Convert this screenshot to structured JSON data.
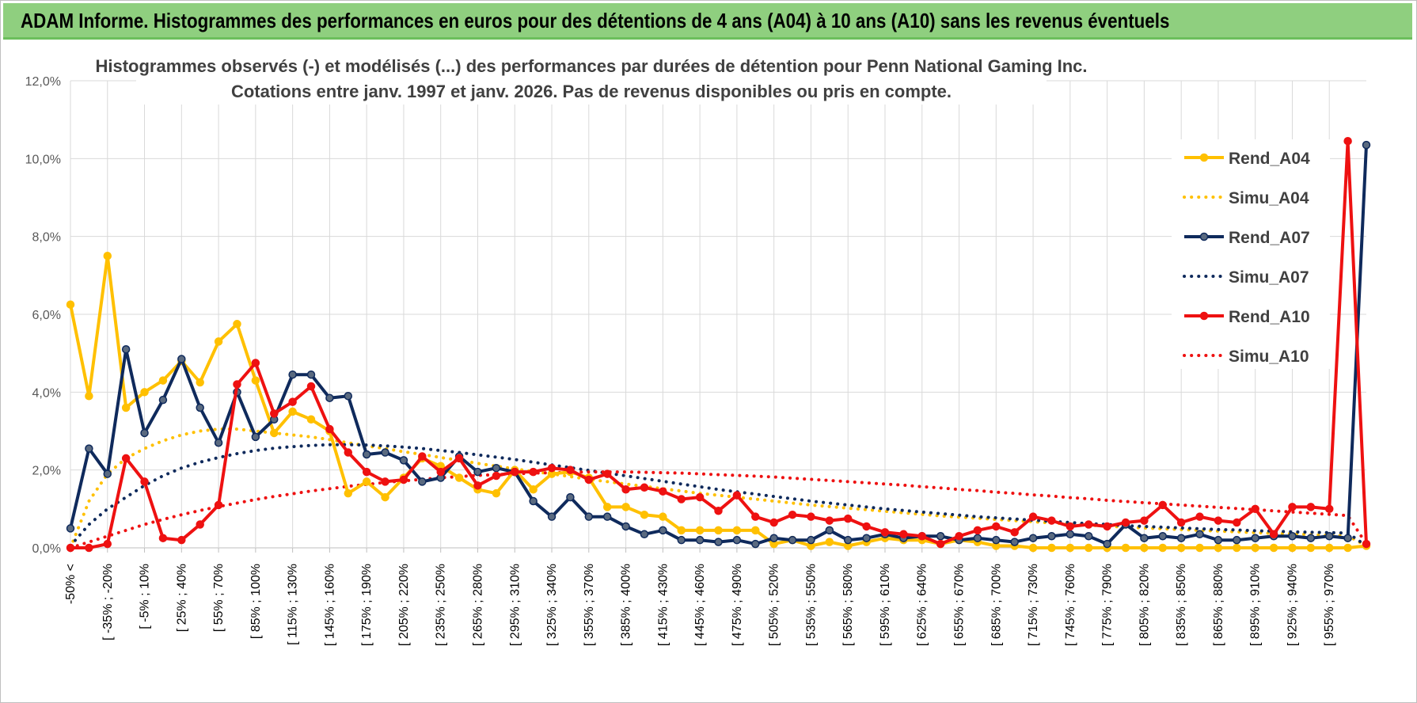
{
  "banner": {
    "title": "ADAM Informe. Histogrammes des performances en euros pour des détentions de 4 ans (A04) à 10 ans (A10) sans les revenus éventuels"
  },
  "chart_data": {
    "type": "line",
    "title": "Histogrammes observés (-) et modélisés (...) des performances par durées de détention pour Penn National Gaming Inc.",
    "subtitle": "Cotations entre janv. 1997 et janv. 2026. Pas de revenus disponibles ou pris en compte.",
    "xlabel": "",
    "ylabel": "",
    "ylim": [
      0,
      12
    ],
    "y_ticks": [
      "0,0%",
      "2,0%",
      "4,0%",
      "6,0%",
      "8,0%",
      "10,0%",
      "12,0%"
    ],
    "grid": true,
    "legend_position": "top-right",
    "x_tick_labels": [
      "-50% <",
      "[ -35% ; -20%",
      "[ -5% ; 10%",
      "[ 25% ; 40%",
      "[ 55% ; 70%",
      "[ 85% ; 100%",
      "[ 115% ; 130%",
      "[ 145% ; 160%",
      "[ 175% ; 190%",
      "[ 205% ; 220%",
      "[ 235% ; 250%",
      "[ 265% ; 280%",
      "[ 295% ; 310%",
      "[ 325% ; 340%",
      "[ 355% ; 370%",
      "[ 385% ; 400%",
      "[ 415% ; 430%",
      "[ 445% ; 460%",
      "[ 475% ; 490%",
      "[ 505% ; 520%",
      "[ 535% ; 550%",
      "[ 565% ; 580%",
      "[ 595% ; 610%",
      "[ 625% ; 640%",
      "[ 655% ; 670%",
      "[ 685% ; 700%",
      "[ 715% ; 730%",
      "[ 745% ; 760%",
      "[ 775% ; 790%",
      "[ 805% ; 820%",
      "[ 835% ; 850%",
      "[ 865% ; 880%",
      "[ 895% ; 910%",
      "[ 925% ; 940%",
      "[ 955% ; 970%"
    ],
    "series": [
      {
        "name": "Rend_A04",
        "style": "solid",
        "color": "#ffc000",
        "values": [
          6.25,
          3.9,
          7.5,
          3.6,
          4.0,
          4.3,
          4.8,
          4.25,
          5.3,
          5.75,
          4.3,
          2.95,
          3.5,
          3.3,
          3.0,
          1.4,
          1.7,
          1.3,
          1.8,
          2.3,
          2.1,
          1.8,
          1.5,
          1.4,
          2.0,
          1.5,
          1.9,
          1.95,
          1.8,
          1.05,
          1.05,
          0.85,
          0.8,
          0.45,
          0.45,
          0.45,
          0.45,
          0.45,
          0.1,
          0.2,
          0.05,
          0.15,
          0.05,
          0.15,
          0.25,
          0.2,
          0.2,
          0.1,
          0.2,
          0.15,
          0.05,
          0.05,
          0.0,
          0.0,
          0.0,
          0.0,
          0.0,
          0.0,
          0.0,
          0.0,
          0.0,
          0.0,
          0.0,
          0.0,
          0.0,
          0.0,
          0.0,
          0.0,
          0.0,
          0.0,
          0.05
        ]
      },
      {
        "name": "Simu_A04",
        "style": "dotted",
        "color": "#ffc000",
        "values": [
          0.0,
          1.2,
          1.9,
          2.3,
          2.55,
          2.75,
          2.9,
          3.0,
          3.05,
          3.05,
          3.0,
          2.95,
          2.9,
          2.85,
          2.78,
          2.7,
          2.62,
          2.55,
          2.47,
          2.4,
          2.32,
          2.25,
          2.17,
          2.1,
          2.03,
          1.96,
          1.9,
          1.83,
          1.76,
          1.7,
          1.64,
          1.58,
          1.52,
          1.46,
          1.4,
          1.35,
          1.3,
          1.25,
          1.2,
          1.15,
          1.1,
          1.06,
          1.02,
          0.98,
          0.94,
          0.9,
          0.86,
          0.82,
          0.79,
          0.76,
          0.73,
          0.7,
          0.67,
          0.64,
          0.61,
          0.58,
          0.56,
          0.53,
          0.51,
          0.49,
          0.47,
          0.45,
          0.43,
          0.41,
          0.39,
          0.37,
          0.36,
          0.34,
          0.32,
          0.31,
          0.05
        ]
      },
      {
        "name": "Rend_A07",
        "style": "solid",
        "color": "#0f2a5c",
        "values": [
          0.5,
          2.55,
          1.9,
          5.1,
          2.95,
          3.8,
          4.85,
          3.6,
          2.7,
          4.0,
          2.85,
          3.3,
          4.45,
          4.45,
          3.85,
          3.9,
          2.4,
          2.45,
          2.25,
          1.7,
          1.8,
          2.35,
          1.95,
          2.05,
          1.95,
          1.2,
          0.8,
          1.3,
          0.8,
          0.8,
          0.55,
          0.35,
          0.45,
          0.2,
          0.2,
          0.15,
          0.2,
          0.1,
          0.25,
          0.2,
          0.2,
          0.45,
          0.2,
          0.25,
          0.35,
          0.25,
          0.3,
          0.3,
          0.2,
          0.25,
          0.2,
          0.15,
          0.25,
          0.3,
          0.35,
          0.3,
          0.1,
          0.6,
          0.25,
          0.3,
          0.25,
          0.35,
          0.2,
          0.2,
          0.25,
          0.3,
          0.3,
          0.25,
          0.3,
          0.25,
          10.35
        ]
      },
      {
        "name": "Simu_A07",
        "style": "dotted",
        "color": "#0f2a5c",
        "values": [
          0.05,
          0.6,
          1.0,
          1.3,
          1.6,
          1.85,
          2.05,
          2.2,
          2.32,
          2.42,
          2.5,
          2.56,
          2.6,
          2.63,
          2.65,
          2.65,
          2.64,
          2.62,
          2.59,
          2.55,
          2.5,
          2.45,
          2.39,
          2.33,
          2.27,
          2.2,
          2.13,
          2.06,
          1.99,
          1.92,
          1.85,
          1.78,
          1.71,
          1.64,
          1.57,
          1.5,
          1.44,
          1.38,
          1.32,
          1.26,
          1.2,
          1.15,
          1.1,
          1.05,
          1.0,
          0.96,
          0.92,
          0.88,
          0.84,
          0.8,
          0.77,
          0.74,
          0.71,
          0.68,
          0.65,
          0.62,
          0.6,
          0.57,
          0.55,
          0.53,
          0.51,
          0.49,
          0.47,
          0.46,
          0.44,
          0.43,
          0.41,
          0.4,
          0.39,
          0.38,
          0.05
        ]
      },
      {
        "name": "Rend_A10",
        "style": "solid",
        "color": "#ee1111",
        "values": [
          0.0,
          0.0,
          0.1,
          2.3,
          1.7,
          0.25,
          0.2,
          0.6,
          1.1,
          4.2,
          4.75,
          3.45,
          3.75,
          4.15,
          3.05,
          2.45,
          1.95,
          1.7,
          1.75,
          2.35,
          1.95,
          2.3,
          1.6,
          1.85,
          1.95,
          1.95,
          2.05,
          2.0,
          1.75,
          1.9,
          1.5,
          1.55,
          1.45,
          1.25,
          1.3,
          0.95,
          1.35,
          0.8,
          0.65,
          0.85,
          0.8,
          0.7,
          0.75,
          0.55,
          0.4,
          0.35,
          0.3,
          0.1,
          0.3,
          0.45,
          0.55,
          0.4,
          0.8,
          0.7,
          0.55,
          0.6,
          0.55,
          0.65,
          0.7,
          1.1,
          0.65,
          0.8,
          0.7,
          0.65,
          1.0,
          0.35,
          1.05,
          1.05,
          1.0,
          10.45,
          0.1
        ]
      },
      {
        "name": "Simu_A10",
        "style": "dotted",
        "color": "#ee1111",
        "values": [
          0.0,
          0.15,
          0.3,
          0.45,
          0.6,
          0.73,
          0.85,
          0.96,
          1.06,
          1.15,
          1.24,
          1.32,
          1.39,
          1.46,
          1.52,
          1.58,
          1.63,
          1.68,
          1.72,
          1.76,
          1.8,
          1.83,
          1.86,
          1.88,
          1.9,
          1.92,
          1.93,
          1.94,
          1.95,
          1.95,
          1.95,
          1.94,
          1.93,
          1.92,
          1.9,
          1.88,
          1.86,
          1.84,
          1.82,
          1.79,
          1.76,
          1.73,
          1.7,
          1.67,
          1.64,
          1.61,
          1.57,
          1.54,
          1.5,
          1.47,
          1.43,
          1.4,
          1.36,
          1.33,
          1.29,
          1.26,
          1.22,
          1.19,
          1.16,
          1.13,
          1.1,
          1.07,
          1.04,
          1.01,
          0.98,
          0.95,
          0.92,
          0.89,
          0.86,
          0.83,
          0.1
        ]
      }
    ]
  }
}
